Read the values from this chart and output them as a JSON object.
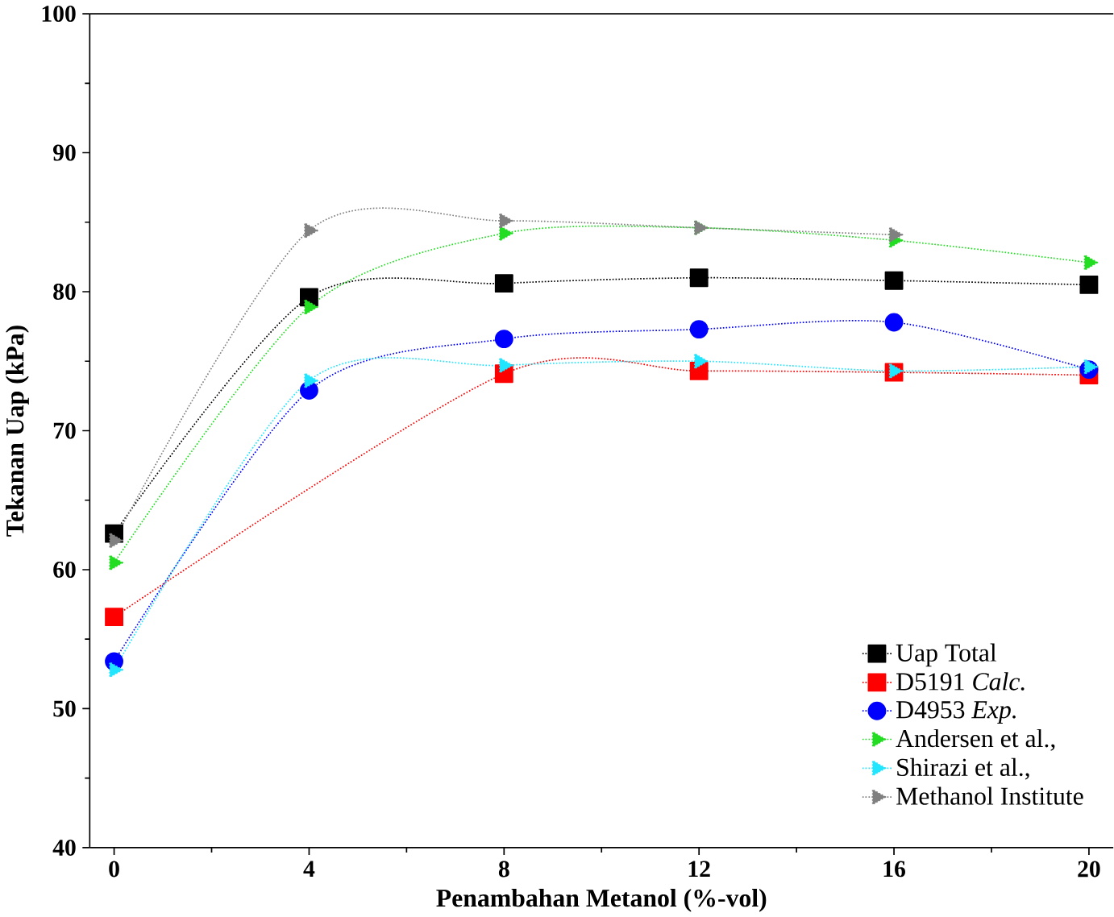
{
  "chart_data": {
    "type": "line",
    "xlabel": "Penambahan Metanol (%-vol)",
    "ylabel": "Tekanan Uap (kPa)",
    "x": [
      0,
      4,
      8,
      12,
      16,
      20
    ],
    "xlim": [
      -0.5,
      20.5
    ],
    "xticks": [
      0,
      4,
      8,
      12,
      16,
      20
    ],
    "ylim": [
      40,
      100
    ],
    "yticks": [
      40,
      50,
      60,
      70,
      80,
      90,
      100
    ],
    "legend": "bottom right",
    "line_style": "dotted",
    "grid": false,
    "series": [
      {
        "name": "Uap Total",
        "color": "#000000",
        "marker": "square",
        "values": [
          62.6,
          79.6,
          80.6,
          81.0,
          80.8,
          80.5
        ]
      },
      {
        "name": "D5191 *Calc.*",
        "color": "#ff0000",
        "marker": "square",
        "values": [
          56.6,
          null,
          74.1,
          74.3,
          74.2,
          74.0
        ]
      },
      {
        "name": "D4953 *Exp.*",
        "color": "#0000ff",
        "marker": "circle",
        "values": [
          53.4,
          72.9,
          76.6,
          77.3,
          77.8,
          74.4
        ]
      },
      {
        "name": "Andersen et al.,",
        "color": "#22dd22",
        "marker": "triangle",
        "values": [
          60.5,
          78.9,
          84.2,
          84.6,
          83.7,
          82.1
        ]
      },
      {
        "name": "Shirazi et al.,",
        "color": "#22e5ff",
        "marker": "triangle",
        "values": [
          52.8,
          73.6,
          74.7,
          75.0,
          74.3,
          74.6
        ]
      },
      {
        "name": "Methanol Institute",
        "color": "#808080",
        "marker": "triangle",
        "values": [
          62.1,
          84.4,
          85.1,
          84.6,
          84.1,
          null
        ]
      }
    ]
  }
}
